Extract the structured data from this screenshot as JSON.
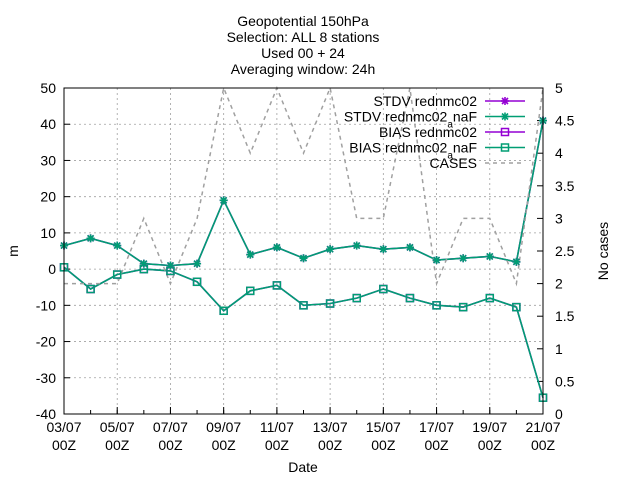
{
  "chart_data": {
    "type": "line",
    "title_lines": [
      "Geopotential 150hPa",
      "Selection: ALL      8 stations",
      "Used 00 + 24",
      "Averaging window: 24h"
    ],
    "xlabel": "Date",
    "ylabel": "m",
    "y2label": "No cases",
    "ylim": [
      -40,
      50
    ],
    "y2lim": [
      0,
      5
    ],
    "yticks": [
      -40,
      -30,
      -20,
      -10,
      0,
      10,
      20,
      30,
      40,
      50
    ],
    "y2ticks": [
      "0",
      "0.5",
      "1",
      "1.5",
      "2",
      "2.5",
      "3",
      "3.5",
      "4",
      "4.5",
      "5"
    ],
    "x_tick_labels": [
      [
        "03/07",
        "00Z"
      ],
      [
        "05/07",
        "00Z"
      ],
      [
        "07/07",
        "00Z"
      ],
      [
        "09/07",
        "00Z"
      ],
      [
        "11/07",
        "00Z"
      ],
      [
        "13/07",
        "00Z"
      ],
      [
        "15/07",
        "00Z"
      ],
      [
        "17/07",
        "00Z"
      ],
      [
        "19/07",
        "00Z"
      ],
      [
        "21/07",
        "00Z"
      ]
    ],
    "x_days": [
      "03/07",
      "04/07",
      "05/07",
      "06/07",
      "07/07",
      "08/07",
      "09/07",
      "10/07",
      "11/07",
      "12/07",
      "13/07",
      "14/07",
      "15/07",
      "16/07",
      "17/07",
      "18/07",
      "19/07",
      "20/07",
      "21/07"
    ],
    "grid": true,
    "legend_position": "top-right",
    "series": [
      {
        "name": "STDV rednmc02",
        "color": "#9400d3",
        "marker": "star",
        "axis": "y",
        "values": [
          6.5,
          8.5,
          6.5,
          1.5,
          1,
          1.5,
          19,
          4,
          6,
          3,
          5.5,
          6.5,
          5.5,
          6,
          2.5,
          3,
          3.5,
          2,
          41
        ]
      },
      {
        "name": "STDV rednmc02_{a}naF",
        "color": "#009e73",
        "marker": "star",
        "axis": "y",
        "values": [
          6.5,
          8.5,
          6.5,
          1.5,
          1,
          1.5,
          19,
          4,
          6,
          3,
          5.5,
          6.5,
          5.5,
          6,
          2.5,
          3,
          3.5,
          2,
          41
        ]
      },
      {
        "name": "BIAS rednmc02",
        "color": "#9400d3",
        "marker": "square",
        "axis": "y",
        "values": [
          0.5,
          -5.5,
          -1.5,
          0,
          -0.5,
          -3.5,
          -11.5,
          -6,
          -4.5,
          -10,
          -9.5,
          -8,
          -5.5,
          -8,
          -10,
          -10.5,
          -8,
          -10.5,
          -35.5
        ]
      },
      {
        "name": "BIAS rednmc02_{a}naF",
        "color": "#009e73",
        "marker": "square",
        "axis": "y",
        "values": [
          0.5,
          -5.5,
          -1.5,
          0,
          -0.5,
          -3.5,
          -11.5,
          -6,
          -4.5,
          -10,
          -9.5,
          -8,
          -5.5,
          -8,
          -10,
          -10.5,
          -8,
          -10.5,
          -35.5
        ]
      },
      {
        "name": "CASES",
        "color": "#a0a0a0",
        "dashed": true,
        "axis": "y2",
        "values": [
          2,
          2,
          2,
          3,
          2,
          3,
          5,
          4,
          5,
          4,
          5,
          3,
          3,
          5,
          2,
          3,
          3,
          2,
          5
        ]
      }
    ]
  }
}
